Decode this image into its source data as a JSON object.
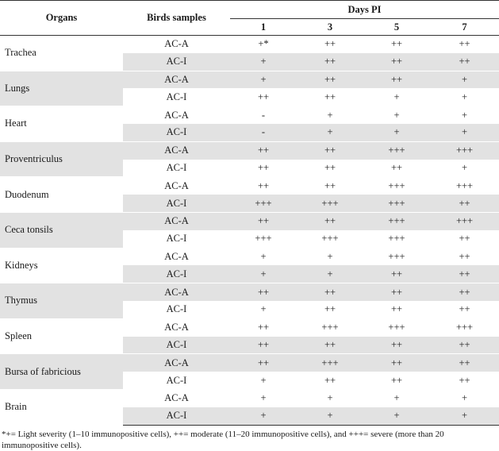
{
  "header": {
    "organs": "Organs",
    "birds": "Birds samples",
    "days": "Days PI",
    "day_cols": [
      "1",
      "3",
      "5",
      "7"
    ]
  },
  "rows": [
    {
      "organ": "Trachea",
      "samples": [
        {
          "sample": "AC-A",
          "values": [
            "+*",
            "++",
            "++",
            "++"
          ]
        },
        {
          "sample": "AC-I",
          "values": [
            "+",
            "++",
            "++",
            "++"
          ]
        }
      ]
    },
    {
      "organ": "Lungs",
      "samples": [
        {
          "sample": "AC-A",
          "values": [
            "+",
            "++",
            "++",
            "+"
          ]
        },
        {
          "sample": "AC-I",
          "values": [
            "++",
            "++",
            "+",
            "+"
          ]
        }
      ]
    },
    {
      "organ": "Heart",
      "samples": [
        {
          "sample": "AC-A",
          "values": [
            "-",
            "+",
            "+",
            "+"
          ]
        },
        {
          "sample": "AC-I",
          "values": [
            "-",
            "+",
            "+",
            "+"
          ]
        }
      ]
    },
    {
      "organ": "Proventriculus",
      "samples": [
        {
          "sample": "AC-A",
          "values": [
            "++",
            "++",
            "+++",
            "+++"
          ]
        },
        {
          "sample": "AC-I",
          "values": [
            "++",
            "++",
            "++",
            "+"
          ]
        }
      ]
    },
    {
      "organ": "Duodenum",
      "samples": [
        {
          "sample": "AC-A",
          "values": [
            "++",
            "++",
            "+++",
            "+++"
          ]
        },
        {
          "sample": "AC-I",
          "values": [
            "+++",
            "+++",
            "+++",
            "++"
          ]
        }
      ]
    },
    {
      "organ": "Ceca tonsils",
      "samples": [
        {
          "sample": "AC-A",
          "values": [
            "++",
            "++",
            "+++",
            "+++"
          ]
        },
        {
          "sample": "AC-I",
          "values": [
            "+++",
            "+++",
            "+++",
            "++"
          ]
        }
      ]
    },
    {
      "organ": "Kidneys",
      "samples": [
        {
          "sample": "AC-A",
          "values": [
            "+",
            "+",
            "+++",
            "++"
          ]
        },
        {
          "sample": "AC-I",
          "values": [
            "+",
            "+",
            "++",
            "++"
          ]
        }
      ]
    },
    {
      "organ": "Thymus",
      "samples": [
        {
          "sample": "AC-A",
          "values": [
            "++",
            "++",
            "++",
            "++"
          ]
        },
        {
          "sample": "AC-I",
          "values": [
            "+",
            "++",
            "++",
            "++"
          ]
        }
      ]
    },
    {
      "organ": "Spleen",
      "samples": [
        {
          "sample": "AC-A",
          "values": [
            "++",
            "+++",
            "+++",
            "+++"
          ]
        },
        {
          "sample": "AC-I",
          "values": [
            "++",
            "++",
            "++",
            "++"
          ]
        }
      ]
    },
    {
      "organ": "Bursa of fabricious",
      "samples": [
        {
          "sample": "AC-A",
          "values": [
            "++",
            "+++",
            "++",
            "++"
          ]
        },
        {
          "sample": "AC-I",
          "values": [
            "+",
            "++",
            "++",
            "++"
          ]
        }
      ]
    },
    {
      "organ": "Brain",
      "samples": [
        {
          "sample": "AC-A",
          "values": [
            "+",
            "+",
            "+",
            "+"
          ]
        },
        {
          "sample": "AC-I",
          "values": [
            "+",
            "+",
            "+",
            "+"
          ]
        }
      ]
    }
  ],
  "footnote": "*+= Light severity (1–10 immunopositive cells), ++= moderate (11–20 immunopositive cells), and +++= severe (more than 20 immunopositive cells).",
  "colors": {
    "shade": "#e2e2e2",
    "rule": "#333333"
  }
}
